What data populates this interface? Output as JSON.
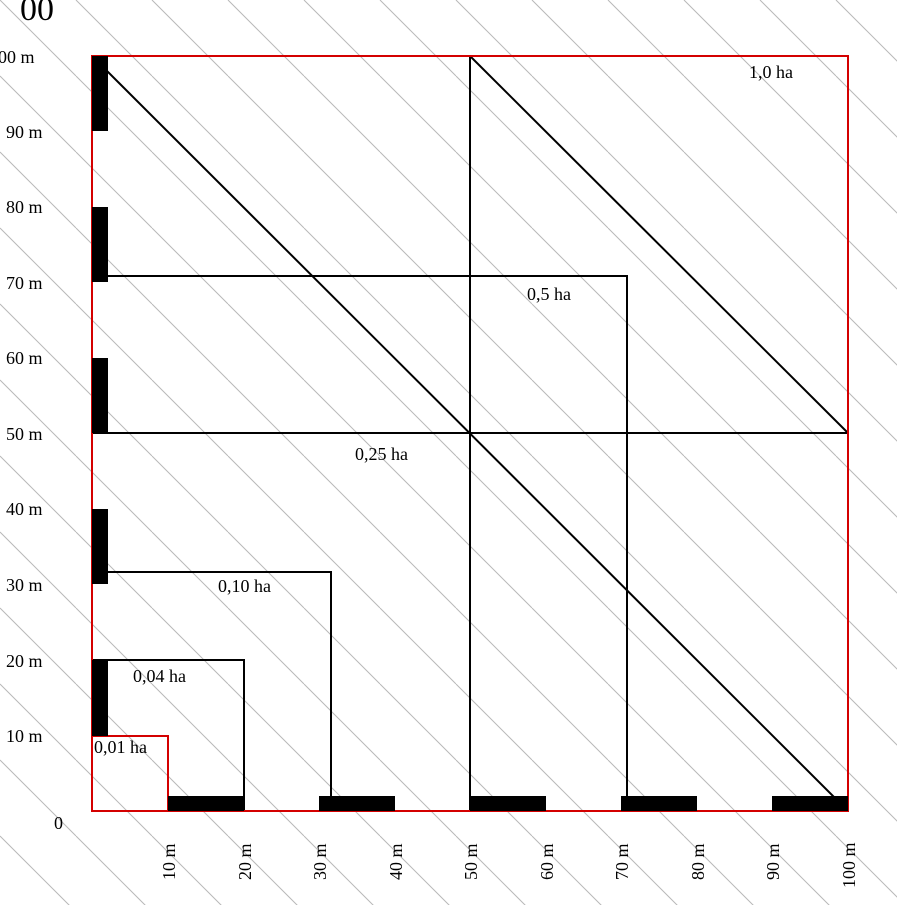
{
  "header_fragment": "00",
  "origin_label": "0",
  "y_axis_labels": [
    "10 m",
    "20 m",
    "30 m",
    "40 m",
    "50 m",
    "60 m",
    "70 m",
    "80 m",
    "90 m",
    "00 m"
  ],
  "x_axis_labels": [
    "10 m",
    "20 m",
    "30 m",
    "40 m",
    "50 m",
    "60 m",
    "70 m",
    "80 m",
    "90 m",
    "100 m"
  ],
  "areas": [
    {
      "label": "0,01 ha",
      "size_m": 10
    },
    {
      "label": "0,04 ha",
      "size_m": 20
    },
    {
      "label": "0,10 ha",
      "size_m": 31.6
    },
    {
      "label": "0,25 ha",
      "size_m": 50
    },
    {
      "label": "0,5 ha",
      "size_m": 70.7
    },
    {
      "label": "1,0 ha",
      "size_m": 100
    }
  ],
  "colors": {
    "outer_square": "#d40000",
    "small_square": "#d40000",
    "lines": "#000000",
    "hatch": "#b8b8b8"
  }
}
